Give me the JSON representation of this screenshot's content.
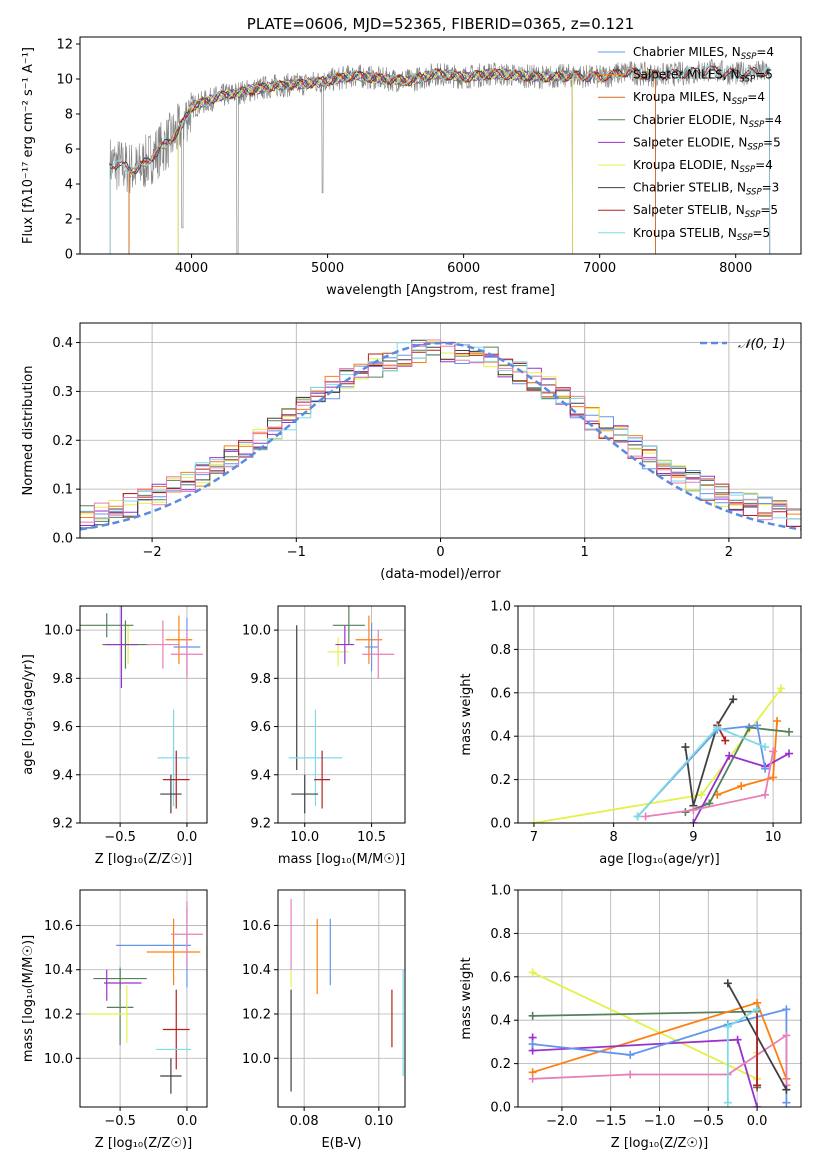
{
  "colors": {
    "chabrier_miles": "#6495ed",
    "salpeter_miles": "#ff7f0e",
    "kroupa_miles": "#d2691e",
    "chabrier_elodie": "#55805a",
    "salpeter_elodie": "#9932cc",
    "kroupa_elodie": "#e3f14b",
    "chabrier_stelib": "#404040",
    "salpeter_stelib": "#b22222",
    "kroupa_stelib": "#7fdbe6",
    "pink": "#e87fb8",
    "normal": "#5b8be0",
    "grey_data": "#808080"
  },
  "chart_data": [
    {
      "id": "spectrum",
      "type": "line",
      "title": "PLATE=0606, MJD=52365, FIBERID=0365, z=0.121",
      "xlabel": "wavelength [Angstrom, rest frame]",
      "ylabel": "Flux [fλ10⁻¹⁷ erg cm⁻² s⁻¹ A⁻¹]",
      "xlim": [
        3180,
        8480
      ],
      "ylim": [
        0,
        12.4
      ],
      "xticks": [
        4000,
        5000,
        6000,
        7000,
        8000
      ],
      "yticks": [
        0,
        2,
        4,
        6,
        8,
        10,
        12
      ],
      "grid": false,
      "legend_position": "right",
      "continuum": {
        "x": [
          3400,
          3600,
          3800,
          3900,
          4000,
          4200,
          4400,
          4600,
          4800,
          5000,
          5200,
          5400,
          5600,
          5800,
          6000,
          6200,
          6400,
          6600,
          6800,
          7000,
          7200,
          7400,
          7600,
          7800,
          8000,
          8200
        ],
        "y": [
          5.2,
          4.8,
          6.2,
          7.0,
          8.4,
          9.0,
          9.3,
          9.6,
          9.7,
          9.9,
          10.2,
          10.0,
          9.9,
          10.3,
          10.1,
          10.3,
          10.2,
          10.1,
          10.2,
          10.1,
          10.4,
          10.2,
          10.3,
          10.5,
          10.3,
          10.4
        ]
      },
      "legend": [
        {
          "label": "Chabrier MILES, N",
          "sub": "SSP",
          "suffix": "=4",
          "color_key": "chabrier_miles"
        },
        {
          "label": "Salpeter MILES, N",
          "sub": "SSP",
          "suffix": "=5",
          "color_key": "salpeter_miles"
        },
        {
          "label": "Kroupa MILES, N",
          "sub": "SSP",
          "suffix": "=4",
          "color_key": "kroupa_miles"
        },
        {
          "label": "Chabrier ELODIE, N",
          "sub": "SSP",
          "suffix": "=4",
          "color_key": "chabrier_elodie"
        },
        {
          "label": "Salpeter ELODIE, N",
          "sub": "SSP",
          "suffix": "=5",
          "color_key": "salpeter_elodie"
        },
        {
          "label": "Kroupa ELODIE, N",
          "sub": "SSP",
          "suffix": "=4",
          "color_key": "kroupa_elodie"
        },
        {
          "label": "Chabrier STELIB, N",
          "sub": "SSP",
          "suffix": "=3",
          "color_key": "chabrier_stelib"
        },
        {
          "label": "Salpeter STELIB, N",
          "sub": "SSP",
          "suffix": "=5",
          "color_key": "salpeter_stelib"
        },
        {
          "label": "Kroupa STELIB, N",
          "sub": "SSP",
          "suffix": "=5",
          "color_key": "kroupa_stelib"
        }
      ]
    },
    {
      "id": "residuals",
      "type": "line",
      "xlabel": "(data-model)/error",
      "ylabel": "Normed distribution",
      "xlim": [
        -2.5,
        2.5
      ],
      "ylim": [
        0,
        0.44
      ],
      "xticks": [
        -2,
        -1,
        0,
        1,
        2
      ],
      "yticks": [
        0.0,
        0.1,
        0.2,
        0.3,
        0.4
      ],
      "grid": true,
      "legend_position": "top-right",
      "normal_label": "𝒩(0, 1)",
      "hist_bins": 50
    },
    {
      "id": "age_vs_Z",
      "type": "scatter",
      "xlabel": "Z [log₁₀(Z/Z☉)]",
      "ylabel": "age  [log₁₀(age/yr)]",
      "xlim": [
        -0.8,
        0.15
      ],
      "ylim": [
        9.2,
        10.1
      ],
      "xticks": [
        -0.5,
        0.0
      ],
      "yticks": [
        9.2,
        9.4,
        9.6,
        9.8,
        10.0
      ],
      "grid": true,
      "points": [
        {
          "x": -0.44,
          "y": 9.94,
          "xerr": 0.2,
          "yerr": 0.08,
          "color_key": "kroupa_elodie"
        },
        {
          "x": -0.6,
          "y": 10.02,
          "xerr": 0.2,
          "yerr": 0.05,
          "color_key": "chabrier_elodie"
        },
        {
          "x": -0.46,
          "y": 9.94,
          "xerr": 0.17,
          "yerr": 0.1,
          "color_key": "chabrier_elodie"
        },
        {
          "x": -0.49,
          "y": 9.94,
          "xerr": 0.12,
          "yerr": 0.18,
          "color_key": "salpeter_elodie"
        },
        {
          "x": -0.18,
          "y": 9.94,
          "xerr": 0.12,
          "yerr": 0.1,
          "color_key": "pink"
        },
        {
          "x": -0.06,
          "y": 9.96,
          "xerr": 0.1,
          "yerr": 0.1,
          "color_key": "salpeter_miles"
        },
        {
          "x": 0.0,
          "y": 9.93,
          "xerr": 0.1,
          "yerr": 0.12,
          "color_key": "chabrier_miles"
        },
        {
          "x": 0.0,
          "y": 9.9,
          "xerr": 0.12,
          "yerr": 0.1,
          "color_key": "pink"
        },
        {
          "x": -0.1,
          "y": 9.47,
          "xerr": 0.12,
          "yerr": 0.2,
          "color_key": "kroupa_stelib"
        },
        {
          "x": -0.08,
          "y": 9.38,
          "xerr": 0.1,
          "yerr": 0.12,
          "color_key": "salpeter_stelib"
        },
        {
          "x": -0.12,
          "y": 9.32,
          "xerr": 0.08,
          "yerr": 0.08,
          "color_key": "chabrier_stelib"
        }
      ]
    },
    {
      "id": "age_vs_mass",
      "type": "scatter",
      "xlabel": "mass [log₁₀(M/M☉)]",
      "ylabel": "",
      "xlim": [
        9.8,
        10.75
      ],
      "ylim": [
        9.2,
        10.1
      ],
      "xticks": [
        10.0,
        10.5
      ],
      "yticks": [
        9.2,
        9.4,
        9.6,
        9.8,
        10.0
      ],
      "grid": true,
      "points": [
        {
          "x": 10.33,
          "y": 10.02,
          "xerr": 0.12,
          "yerr": 0.08,
          "color_key": "chabrier_elodie"
        },
        {
          "x": 10.25,
          "y": 9.91,
          "xerr": 0.08,
          "yerr": 0.06,
          "color_key": "kroupa_elodie"
        },
        {
          "x": 10.3,
          "y": 9.94,
          "xerr": 0.07,
          "yerr": 0.08,
          "color_key": "salpeter_elodie"
        },
        {
          "x": 10.48,
          "y": 9.96,
          "xerr": 0.1,
          "yerr": 0.1,
          "color_key": "salpeter_miles"
        },
        {
          "x": 10.5,
          "y": 9.93,
          "xerr": 0.05,
          "yerr": 0.1,
          "color_key": "chabrier_miles"
        },
        {
          "x": 10.55,
          "y": 9.9,
          "xerr": 0.12,
          "yerr": 0.1,
          "color_key": "pink"
        },
        {
          "x": 9.94,
          "y": 9.72,
          "xerr": 0.0,
          "yerr": 0.3,
          "color_key": "chabrier_stelib"
        },
        {
          "x": 10.08,
          "y": 9.47,
          "xerr": 0.2,
          "yerr": 0.2,
          "color_key": "kroupa_stelib"
        },
        {
          "x": 10.13,
          "y": 9.38,
          "xerr": 0.06,
          "yerr": 0.12,
          "color_key": "salpeter_stelib"
        },
        {
          "x": 10.0,
          "y": 9.32,
          "xerr": 0.1,
          "yerr": 0.08,
          "color_key": "chabrier_stelib"
        }
      ]
    },
    {
      "id": "weight_vs_age",
      "type": "line",
      "xlabel": "age  [log₁₀(age/yr)]",
      "ylabel": "mass weight",
      "xlim": [
        6.8,
        10.35
      ],
      "ylim": [
        0,
        1.0
      ],
      "xticks": [
        7,
        8,
        9,
        10
      ],
      "yticks": [
        0.0,
        0.2,
        0.4,
        0.6,
        0.8,
        1.0
      ],
      "grid": true,
      "series": [
        {
          "color_key": "kroupa_elodie",
          "x": [
            7.0,
            9.1,
            10.1
          ],
          "y": [
            0.0,
            0.13,
            0.62
          ]
        },
        {
          "color_key": "chabrier_stelib",
          "x": [
            8.9,
            9.0,
            9.3,
            9.5
          ],
          "y": [
            0.35,
            0.08,
            0.45,
            0.57
          ]
        },
        {
          "color_key": "salpeter_stelib",
          "x": [
            9.3,
            9.4
          ],
          "y": [
            0.45,
            0.38
          ]
        },
        {
          "color_key": "salpeter_miles",
          "x": [
            9.3,
            9.6,
            10.0,
            10.05
          ],
          "y": [
            0.13,
            0.17,
            0.21,
            0.47
          ]
        },
        {
          "color_key": "chabrier_elodie",
          "x": [
            8.9,
            9.2,
            9.7,
            10.2
          ],
          "y": [
            0.05,
            0.09,
            0.44,
            0.42
          ]
        },
        {
          "color_key": "salpeter_elodie",
          "x": [
            9.0,
            9.45,
            9.9,
            10.2
          ],
          "y": [
            0.0,
            0.31,
            0.26,
            0.32
          ]
        },
        {
          "color_key": "chabrier_miles",
          "x": [
            8.3,
            9.3,
            9.8,
            9.9
          ],
          "y": [
            0.03,
            0.43,
            0.45,
            0.25
          ]
        },
        {
          "color_key": "pink",
          "x": [
            8.4,
            9.0,
            9.9,
            10.0
          ],
          "y": [
            0.03,
            0.06,
            0.13,
            0.33
          ]
        },
        {
          "color_key": "kroupa_stelib",
          "x": [
            8.3,
            9.3,
            9.9
          ],
          "y": [
            0.03,
            0.44,
            0.35
          ]
        }
      ]
    },
    {
      "id": "mass_vs_Z",
      "type": "scatter",
      "xlabel": "Z [log₁₀(Z/Z☉)]",
      "ylabel": "mass [log₁₀(M/M☉)]",
      "xlim": [
        -0.8,
        0.15
      ],
      "ylim": [
        9.78,
        10.76
      ],
      "xticks": [
        -0.5,
        0.0
      ],
      "yticks": [
        10.0,
        10.2,
        10.4,
        10.6
      ],
      "grid": true,
      "points": [
        {
          "x": -0.5,
          "y": 10.36,
          "xerr": 0.2,
          "yerr": 0.05,
          "color_key": "chabrier_elodie"
        },
        {
          "x": -0.5,
          "y": 10.23,
          "xerr": 0.1,
          "yerr": 0.17,
          "color_key": "chabrier_elodie"
        },
        {
          "x": -0.6,
          "y": 10.33,
          "xerr": 0.0,
          "yerr": 0.07,
          "color_key": "salpeter_elodie"
        },
        {
          "x": -0.48,
          "y": 10.34,
          "xerr": 0.14,
          "yerr": 0.0,
          "color_key": "salpeter_elodie"
        },
        {
          "x": -0.6,
          "y": 10.2,
          "xerr": 0.15,
          "yerr": 0.0,
          "color_key": "kroupa_elodie"
        },
        {
          "x": -0.45,
          "y": 10.2,
          "xerr": 0.0,
          "yerr": 0.13,
          "color_key": "kroupa_elodie"
        },
        {
          "x": -0.25,
          "y": 10.51,
          "xerr": 0.28,
          "yerr": 0.0,
          "color_key": "chabrier_miles"
        },
        {
          "x": 0.0,
          "y": 10.5,
          "xerr": 0.0,
          "yerr": 0.18,
          "color_key": "chabrier_miles"
        },
        {
          "x": -0.1,
          "y": 10.48,
          "xerr": 0.2,
          "yerr": 0.15,
          "color_key": "salpeter_miles"
        },
        {
          "x": 0.0,
          "y": 10.56,
          "xerr": 0.12,
          "yerr": 0.15,
          "color_key": "pink"
        },
        {
          "x": -0.08,
          "y": 10.13,
          "xerr": 0.1,
          "yerr": 0.18,
          "color_key": "salpeter_stelib"
        },
        {
          "x": -0.1,
          "y": 10.04,
          "xerr": 0.13,
          "yerr": 0.0,
          "color_key": "kroupa_stelib"
        },
        {
          "x": -0.12,
          "y": 9.92,
          "xerr": 0.08,
          "yerr": 0.08,
          "color_key": "chabrier_stelib"
        }
      ]
    },
    {
      "id": "mass_vs_ebv",
      "type": "scatter",
      "xlabel": "E(B-V)",
      "ylabel": "",
      "xlim": [
        0.073,
        0.107
      ],
      "ylim": [
        9.78,
        10.76
      ],
      "xticks": [
        0.08,
        0.1
      ],
      "yticks": [
        10.0,
        10.2,
        10.4,
        10.6
      ],
      "grid": true,
      "points": [
        {
          "x": 0.0765,
          "y": 10.56,
          "xerr": 0.0,
          "yerr": 0.16,
          "color_key": "pink"
        },
        {
          "x": 0.0765,
          "y": 10.36,
          "xerr": 0.0,
          "yerr": 0.04,
          "color_key": "kroupa_elodie"
        },
        {
          "x": 0.0765,
          "y": 10.08,
          "xerr": 0.0,
          "yerr": 0.23,
          "color_key": "chabrier_stelib"
        },
        {
          "x": 0.0835,
          "y": 10.46,
          "xerr": 0.0,
          "yerr": 0.17,
          "color_key": "salpeter_miles"
        },
        {
          "x": 0.087,
          "y": 10.48,
          "xerr": 0.0,
          "yerr": 0.15,
          "color_key": "chabrier_miles"
        },
        {
          "x": 0.1035,
          "y": 10.18,
          "xerr": 0.0,
          "yerr": 0.13,
          "color_key": "salpeter_stelib"
        },
        {
          "x": 0.1065,
          "y": 10.16,
          "xerr": 0.0,
          "yerr": 0.24,
          "color_key": "kroupa_stelib"
        }
      ]
    },
    {
      "id": "weight_vs_Z",
      "type": "line",
      "xlabel": "Z [log₁₀(Z/Z☉)]",
      "ylabel": "mass weight",
      "xlim": [
        -2.45,
        0.45
      ],
      "ylim": [
        0,
        1.0
      ],
      "xticks": [
        -2.0,
        -1.5,
        -1.0,
        -0.5,
        0.0
      ],
      "yticks": [
        0.0,
        0.2,
        0.4,
        0.6,
        0.8,
        1.0
      ],
      "grid": true,
      "series": [
        {
          "color_key": "kroupa_elodie",
          "x": [
            -2.3,
            0.0,
            0.0
          ],
          "y": [
            0.62,
            0.13,
            0.25
          ]
        },
        {
          "color_key": "chabrier_elodie",
          "x": [
            -2.3,
            0.0,
            0.0
          ],
          "y": [
            0.42,
            0.44,
            0.09
          ]
        },
        {
          "color_key": "salpeter_miles",
          "x": [
            -2.3,
            0.0,
            0.3
          ],
          "y": [
            0.16,
            0.48,
            0.13
          ]
        },
        {
          "color_key": "salpeter_elodie",
          "x": [
            -2.3,
            -2.3,
            -0.2,
            0.0
          ],
          "y": [
            0.32,
            0.26,
            0.31,
            0.0
          ]
        },
        {
          "color_key": "chabrier_miles",
          "x": [
            -2.3,
            -1.3,
            -0.3,
            0.3,
            0.3
          ],
          "y": [
            0.29,
            0.24,
            0.38,
            0.45,
            0.02
          ]
        },
        {
          "color_key": "pink",
          "x": [
            -2.3,
            -1.3,
            -0.3,
            0.3,
            0.3
          ],
          "y": [
            0.13,
            0.15,
            0.15,
            0.33,
            0.1
          ]
        },
        {
          "color_key": "chabrier_stelib",
          "x": [
            -0.3,
            0.3
          ],
          "y": [
            0.57,
            0.08
          ]
        },
        {
          "color_key": "salpeter_stelib",
          "x": [
            0.0,
            0.0
          ],
          "y": [
            0.45,
            0.1
          ]
        },
        {
          "color_key": "kroupa_stelib",
          "x": [
            -0.3,
            -0.3,
            0.0
          ],
          "y": [
            0.02,
            0.37,
            0.45
          ]
        }
      ]
    }
  ]
}
